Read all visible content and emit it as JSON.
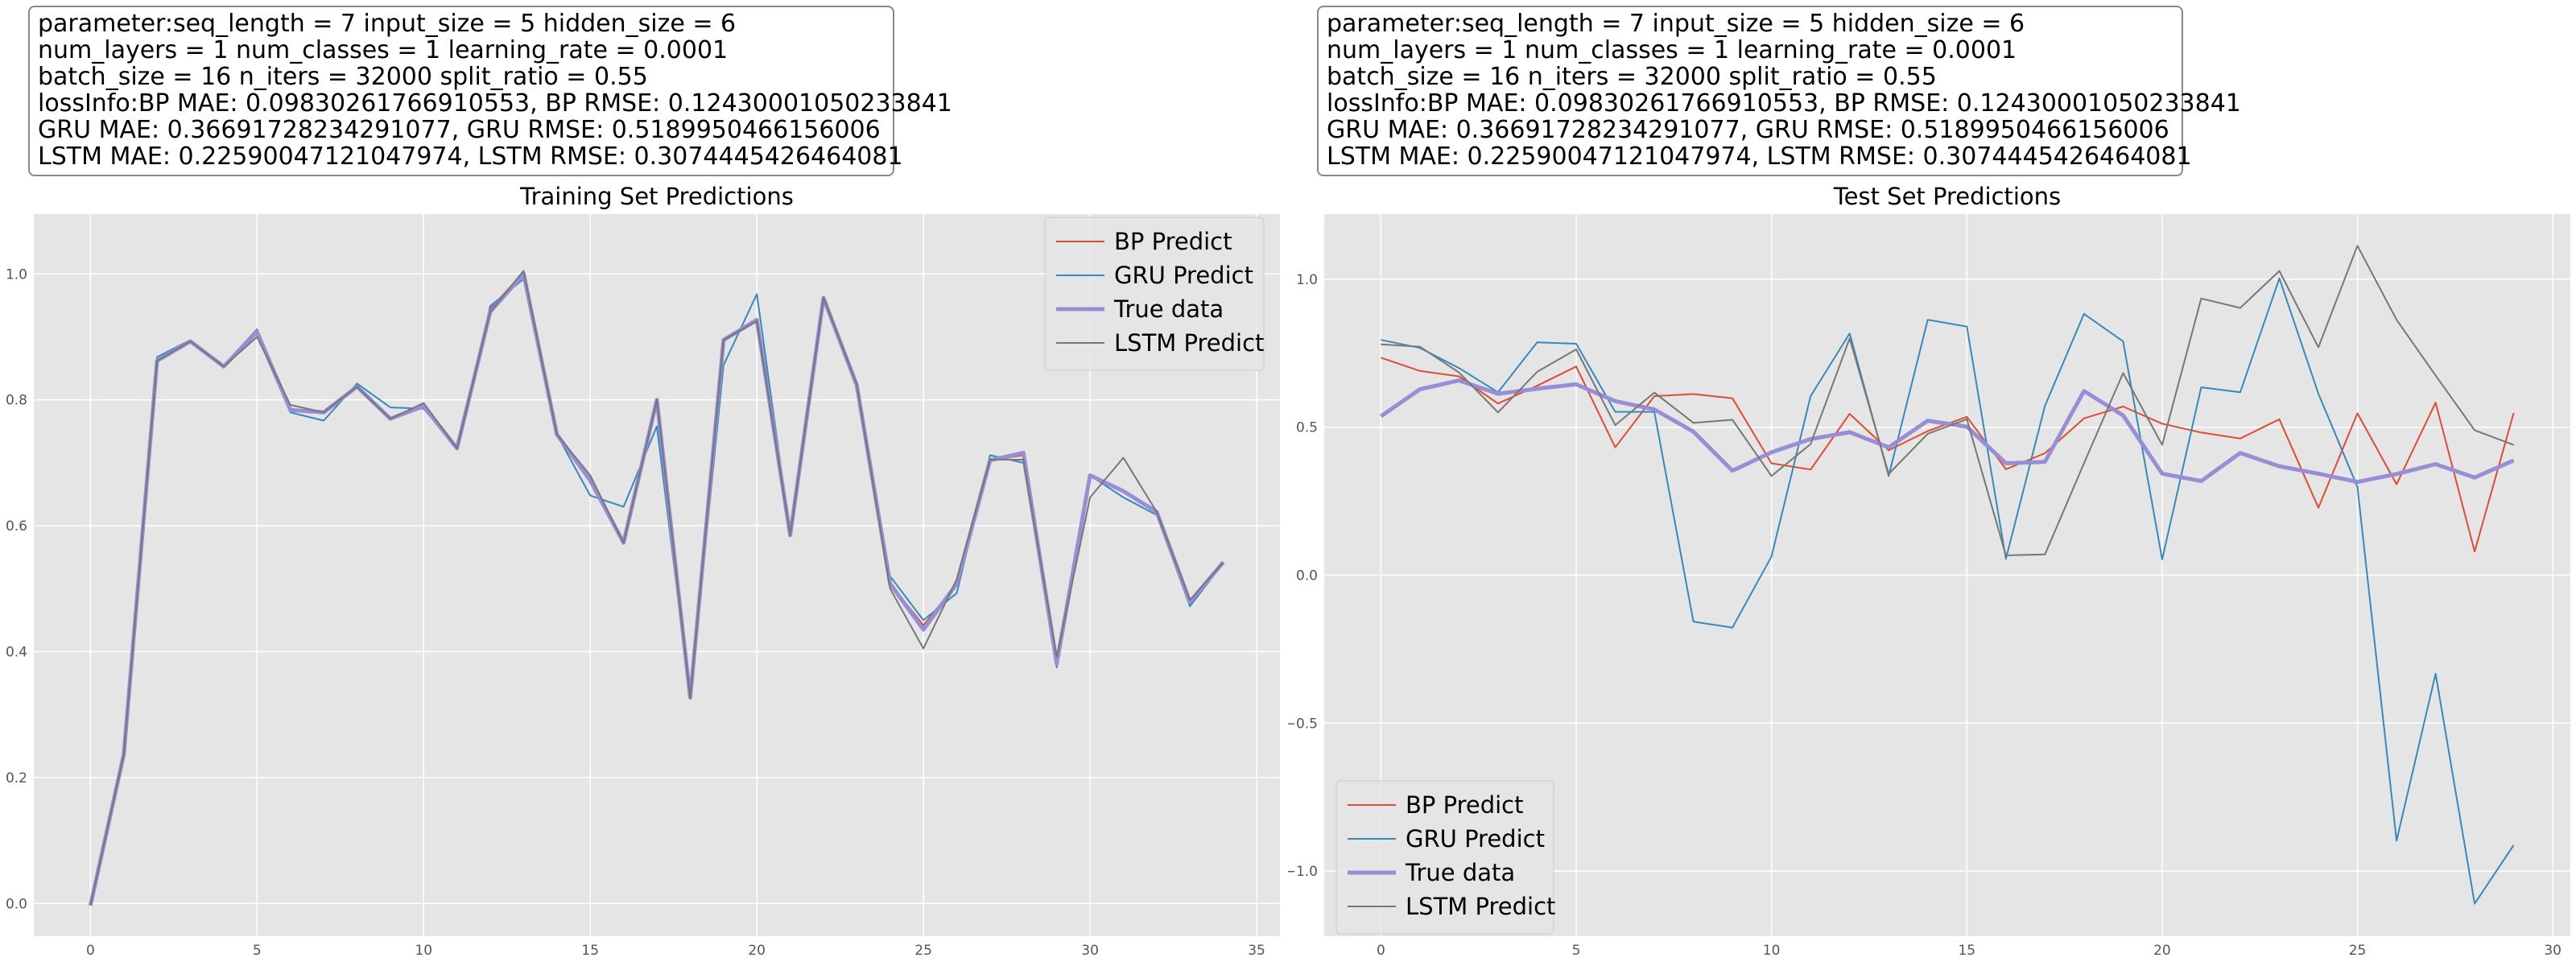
{
  "info_box": {
    "lines": [
      "parameter:seq_length = 7 input_size = 5 hidden_size = 6",
      "num_layers = 1 num_classes = 1 learning_rate = 0.0001",
      "batch_size = 16 n_iters = 32000 split_ratio = 0.55",
      "lossInfo:BP MAE: 0.09830261766910553, BP RMSE: 0.12430001050233841",
      "GRU MAE: 0.36691728234291077, GRU RMSE: 0.5189950466156006",
      "LSTM MAE: 0.22590047121047974, LSTM RMSE: 0.3074445426464081"
    ]
  },
  "colors": {
    "BP Predict": "#E24A33",
    "GRU Predict": "#348ABD",
    "True data": "#988ED5",
    "LSTM Predict": "#777777",
    "plot_background": "#E5E5E5",
    "grid": "#ffffff"
  },
  "chart_data": [
    {
      "type": "line",
      "title": "Training Set Predictions",
      "legend_position": "top-right",
      "grid": true,
      "xlim": [
        -1.7,
        35.7
      ],
      "ylim": [
        -0.052,
        1.095
      ],
      "x_ticks": [
        0,
        5,
        10,
        15,
        20,
        25,
        30,
        35
      ],
      "x_tick_labels": [
        "0",
        "5",
        "10",
        "15",
        "20",
        "25",
        "30",
        "35"
      ],
      "y_ticks": [
        0.0,
        0.2,
        0.4,
        0.6,
        0.8,
        1.0
      ],
      "y_tick_labels": [
        "0.0",
        "0.2",
        "0.4",
        "0.6",
        "0.8",
        "1.0"
      ],
      "x": [
        0,
        1,
        2,
        3,
        4,
        5,
        6,
        7,
        8,
        9,
        10,
        11,
        12,
        13,
        14,
        15,
        16,
        17,
        18,
        19,
        20,
        21,
        22,
        23,
        24,
        25,
        26,
        27,
        28,
        29,
        30,
        31,
        32,
        33,
        34
      ],
      "series": [
        {
          "name": "BP Predict",
          "values": [
            -0.003,
            0.237,
            0.862,
            0.893,
            0.853,
            0.905,
            0.785,
            0.78,
            0.823,
            0.77,
            0.79,
            0.723,
            0.945,
            1.002,
            0.745,
            0.672,
            0.573,
            0.8,
            0.327,
            0.895,
            0.927,
            0.585,
            0.962,
            0.823,
            0.508,
            0.442,
            0.508,
            0.704,
            0.712,
            0.381,
            0.68,
            0.655,
            0.622,
            0.479,
            0.542
          ]
        },
        {
          "name": "GRU Predict",
          "values": [
            -0.003,
            0.237,
            0.868,
            0.895,
            0.855,
            0.912,
            0.78,
            0.767,
            0.826,
            0.788,
            0.786,
            0.723,
            0.949,
            0.992,
            0.745,
            0.648,
            0.63,
            0.758,
            0.327,
            0.855,
            0.968,
            0.587,
            0.962,
            0.82,
            0.52,
            0.45,
            0.493,
            0.712,
            0.7,
            0.375,
            0.68,
            0.645,
            0.617,
            0.472,
            0.541
          ]
        },
        {
          "name": "True data",
          "values": [
            -0.003,
            0.237,
            0.862,
            0.893,
            0.853,
            0.908,
            0.784,
            0.78,
            0.821,
            0.77,
            0.79,
            0.723,
            0.94,
            1.0,
            0.745,
            0.672,
            0.573,
            0.8,
            0.327,
            0.895,
            0.927,
            0.585,
            0.962,
            0.823,
            0.508,
            0.435,
            0.508,
            0.704,
            0.716,
            0.381,
            0.68,
            0.655,
            0.622,
            0.479,
            0.542
          ]
        },
        {
          "name": "LSTM Predict",
          "values": [
            -0.003,
            0.237,
            0.862,
            0.893,
            0.853,
            0.9,
            0.792,
            0.78,
            0.821,
            0.77,
            0.795,
            0.723,
            0.94,
            1.005,
            0.745,
            0.68,
            0.573,
            0.8,
            0.327,
            0.895,
            0.925,
            0.585,
            0.962,
            0.825,
            0.5,
            0.405,
            0.515,
            0.705,
            0.705,
            0.392,
            0.645,
            0.708,
            0.622,
            0.482,
            0.542
          ]
        }
      ]
    },
    {
      "type": "line",
      "title": "Test Set Predictions",
      "legend_position": "lower-left",
      "grid": true,
      "xlim": [
        -1.45,
        30.45
      ],
      "ylim": [
        -1.22,
        1.22
      ],
      "x_ticks": [
        0,
        5,
        10,
        15,
        20,
        25,
        30
      ],
      "x_tick_labels": [
        "0",
        "5",
        "10",
        "15",
        "20",
        "25",
        "30"
      ],
      "y_ticks": [
        -1.0,
        -0.5,
        0.0,
        0.5,
        1.0
      ],
      "y_tick_labels": [
        "−1.0",
        "−0.5",
        "0.0",
        "0.5",
        "1.0"
      ],
      "x": [
        0,
        1,
        2,
        3,
        4,
        5,
        6,
        7,
        8,
        9,
        10,
        11,
        12,
        13,
        14,
        15,
        16,
        17,
        18,
        19,
        20,
        21,
        22,
        23,
        24,
        25,
        26,
        27,
        28,
        29
      ],
      "series": [
        {
          "name": "BP Predict",
          "values": [
            0.735,
            0.69,
            0.672,
            0.58,
            0.64,
            0.705,
            0.432,
            0.605,
            0.612,
            0.598,
            0.378,
            0.357,
            0.545,
            0.422,
            0.487,
            0.535,
            0.358,
            0.412,
            0.53,
            0.57,
            0.512,
            0.482,
            0.462,
            0.527,
            0.228,
            0.547,
            0.307,
            0.583,
            0.08,
            0.548
          ]
        },
        {
          "name": "GRU Predict",
          "values": [
            0.795,
            0.768,
            0.7,
            0.618,
            0.787,
            0.782,
            0.552,
            0.552,
            -0.157,
            -0.177,
            0.063,
            0.605,
            0.817,
            0.335,
            0.863,
            0.84,
            0.055,
            0.572,
            0.883,
            0.79,
            0.053,
            0.635,
            0.618,
            1.003,
            0.613,
            0.298,
            -0.897,
            -0.333,
            -1.11,
            -0.912
          ]
        },
        {
          "name": "True data",
          "values": [
            0.537,
            0.628,
            0.658,
            0.613,
            0.63,
            0.645,
            0.588,
            0.56,
            0.485,
            0.353,
            0.415,
            0.46,
            0.483,
            0.432,
            0.522,
            0.502,
            0.378,
            0.383,
            0.622,
            0.54,
            0.343,
            0.318,
            0.413,
            0.368,
            0.343,
            0.315,
            0.342,
            0.375,
            0.33,
            0.388
          ]
        },
        {
          "name": "LSTM Predict",
          "values": [
            0.78,
            0.772,
            0.685,
            0.55,
            0.687,
            0.763,
            0.507,
            0.617,
            0.515,
            0.525,
            0.335,
            0.443,
            0.8,
            0.342,
            0.478,
            0.527,
            0.067,
            0.07,
            0.378,
            0.683,
            0.44,
            0.935,
            0.903,
            1.028,
            0.77,
            1.113,
            0.863,
            0.675,
            0.49,
            0.44
          ]
        }
      ]
    }
  ]
}
